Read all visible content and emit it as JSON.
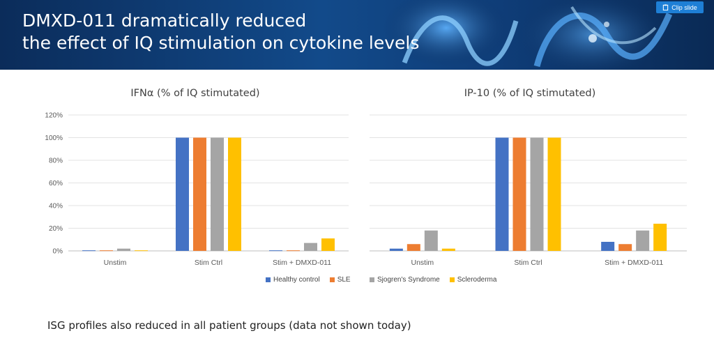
{
  "header": {
    "title_line1": "DMXD-011 dramatically reduced",
    "title_line2": "the effect of IQ stimulation on cytokine levels",
    "clip_button_label": "Clip slide"
  },
  "colors": {
    "healthy_control": "#4472c4",
    "sle": "#ed7d31",
    "sjogrens": "#a5a5a5",
    "scleroderma": "#ffc000"
  },
  "legend": {
    "items": [
      {
        "label": "Healthy control",
        "color": "#4472c4"
      },
      {
        "label": "SLE",
        "color": "#ed7d31"
      },
      {
        "label": "Sjogren's Syndrome",
        "color": "#a5a5a5"
      },
      {
        "label": "Scleroderma",
        "color": "#ffc000"
      }
    ]
  },
  "chart_data": [
    {
      "type": "bar",
      "title": "IFNα (% of IQ stimutated)",
      "categories": [
        "Unstim",
        "Stim Ctrl",
        "Stim + DMXD-011"
      ],
      "yticks": [
        "0%",
        "20%",
        "40%",
        "60%",
        "80%",
        "100%",
        "120%"
      ],
      "ylim": [
        0,
        120
      ],
      "series": [
        {
          "name": "Healthy control",
          "values": [
            0.5,
            100,
            0.5
          ]
        },
        {
          "name": "SLE",
          "values": [
            0.5,
            100,
            0.5
          ]
        },
        {
          "name": "Sjogren's Syndrome",
          "values": [
            2,
            100,
            7
          ]
        },
        {
          "name": "Scleroderma",
          "values": [
            0.5,
            100,
            11
          ]
        }
      ]
    },
    {
      "type": "bar",
      "title": "IP-10 (% of IQ stimutated)",
      "categories": [
        "Unstim",
        "Stim Ctrl",
        "Stim + DMXD-011"
      ],
      "ylim": [
        0,
        120
      ],
      "series": [
        {
          "name": "Healthy control",
          "values": [
            2,
            100,
            8
          ]
        },
        {
          "name": "SLE",
          "values": [
            6,
            100,
            6
          ]
        },
        {
          "name": "Sjogren's Syndrome",
          "values": [
            18,
            100,
            18
          ]
        },
        {
          "name": "Scleroderma",
          "values": [
            2,
            100,
            24
          ]
        }
      ]
    }
  ],
  "footnote": "ISG profiles also reduced in all patient groups (data not shown today)"
}
